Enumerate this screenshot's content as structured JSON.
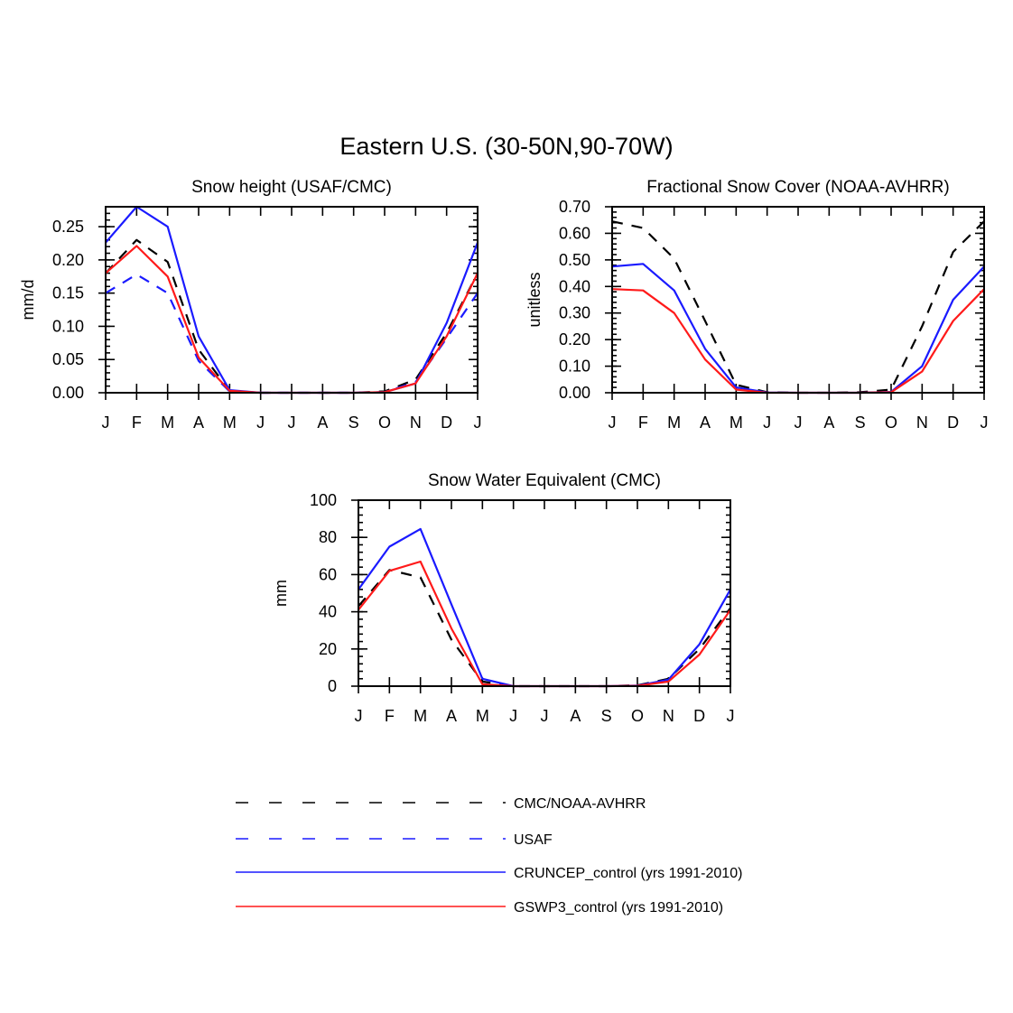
{
  "title": "Eastern U.S. (30-50N,90-70W)",
  "colors": {
    "black": "#000000",
    "blue": "#1a1aff",
    "red": "#ff1a1a"
  },
  "legend": [
    {
      "label": "CMC/NOAA-AVHRR",
      "color": "#000000",
      "dashed": true
    },
    {
      "label": "USAF",
      "color": "#1a1aff",
      "dashed": true
    },
    {
      "label": "CRUNCEP_control (yrs 1991-2010)",
      "color": "#1a1aff",
      "dashed": false
    },
    {
      "label": "GSWP3_control (yrs 1991-2010)",
      "color": "#ff1a1a",
      "dashed": false
    }
  ],
  "chart_data": [
    {
      "type": "line",
      "title": "Snow height (USAF/CMC)",
      "xlabel": "",
      "ylabel": "mm/d",
      "categories": [
        "J",
        "F",
        "M",
        "A",
        "M",
        "J",
        "J",
        "A",
        "S",
        "O",
        "N",
        "D",
        "J"
      ],
      "ylim": [
        0,
        0.28
      ],
      "yticks": [
        "0.00",
        "0.05",
        "0.10",
        "0.15",
        "0.20",
        "0.25"
      ],
      "series": [
        {
          "name": "CMC/NOAA-AVHRR",
          "color": "#000000",
          "dashed": true,
          "values": [
            0.18,
            0.23,
            0.197,
            0.065,
            0.003,
            0.0,
            0.0,
            0.0,
            0.0,
            0.002,
            0.02,
            0.09,
            0.18
          ]
        },
        {
          "name": "USAF",
          "color": "#1a1aff",
          "dashed": true,
          "values": [
            0.15,
            0.178,
            0.15,
            0.048,
            0.002,
            0.0,
            0.0,
            0.0,
            0.0,
            0.001,
            0.016,
            0.082,
            0.15
          ]
        },
        {
          "name": "CRUNCEP_control (yrs 1991-2010)",
          "color": "#1a1aff",
          "dashed": false,
          "values": [
            0.226,
            0.28,
            0.25,
            0.085,
            0.004,
            0.0,
            0.0,
            0.0,
            0.0,
            0.001,
            0.014,
            0.105,
            0.226
          ]
        },
        {
          "name": "GSWP3_control (yrs 1991-2010)",
          "color": "#ff1a1a",
          "dashed": false,
          "values": [
            0.18,
            0.221,
            0.175,
            0.053,
            0.003,
            0.0,
            0.0,
            0.0,
            0.0,
            0.001,
            0.014,
            0.085,
            0.18
          ]
        }
      ]
    },
    {
      "type": "line",
      "title": "Fractional Snow Cover (NOAA-AVHRR)",
      "xlabel": "",
      "ylabel": "unitless",
      "categories": [
        "J",
        "F",
        "M",
        "A",
        "M",
        "J",
        "J",
        "A",
        "S",
        "O",
        "N",
        "D",
        "J"
      ],
      "ylim": [
        0,
        0.7
      ],
      "yticks": [
        "0.00",
        "0.10",
        "0.20",
        "0.30",
        "0.40",
        "0.50",
        "0.60",
        "0.70"
      ],
      "series": [
        {
          "name": "CMC/NOAA-AVHRR",
          "color": "#000000",
          "dashed": true,
          "values": [
            0.645,
            0.62,
            0.505,
            0.27,
            0.03,
            0.002,
            0.0,
            0.0,
            0.002,
            0.012,
            0.25,
            0.53,
            0.645
          ]
        },
        {
          "name": "CRUNCEP_control (yrs 1991-2010)",
          "color": "#1a1aff",
          "dashed": false,
          "values": [
            0.475,
            0.485,
            0.385,
            0.165,
            0.02,
            0.001,
            0.0,
            0.0,
            0.0,
            0.003,
            0.1,
            0.35,
            0.475
          ]
        },
        {
          "name": "GSWP3_control (yrs 1991-2010)",
          "color": "#ff1a1a",
          "dashed": false,
          "values": [
            0.39,
            0.385,
            0.3,
            0.125,
            0.012,
            0.0,
            0.0,
            0.0,
            0.0,
            0.002,
            0.08,
            0.27,
            0.39
          ]
        }
      ]
    },
    {
      "type": "line",
      "title": "Snow Water Equivalent (CMC)",
      "xlabel": "",
      "ylabel": "mm",
      "categories": [
        "J",
        "F",
        "M",
        "A",
        "M",
        "J",
        "J",
        "A",
        "S",
        "O",
        "N",
        "D",
        "J"
      ],
      "ylim": [
        0,
        100
      ],
      "yticks": [
        "0",
        "20",
        "40",
        "60",
        "80",
        "100"
      ],
      "series": [
        {
          "name": "CMC/NOAA-AVHRR",
          "color": "#000000",
          "dashed": true,
          "values": [
            43,
            62.5,
            58.5,
            25,
            2.5,
            0.0,
            0.0,
            0.0,
            0.0,
            0.5,
            4,
            20,
            42
          ]
        },
        {
          "name": "CRUNCEP_control (yrs 1991-2010)",
          "color": "#1a1aff",
          "dashed": false,
          "values": [
            52,
            75,
            84.5,
            44,
            4,
            0.0,
            0.0,
            0.0,
            0.0,
            0.3,
            3.5,
            22.5,
            52
          ]
        },
        {
          "name": "GSWP3_control (yrs 1991-2010)",
          "color": "#ff1a1a",
          "dashed": false,
          "values": [
            41,
            62,
            67,
            31,
            1,
            0.0,
            0.0,
            0.0,
            0.0,
            0.2,
            2.5,
            17,
            41
          ]
        }
      ]
    }
  ]
}
